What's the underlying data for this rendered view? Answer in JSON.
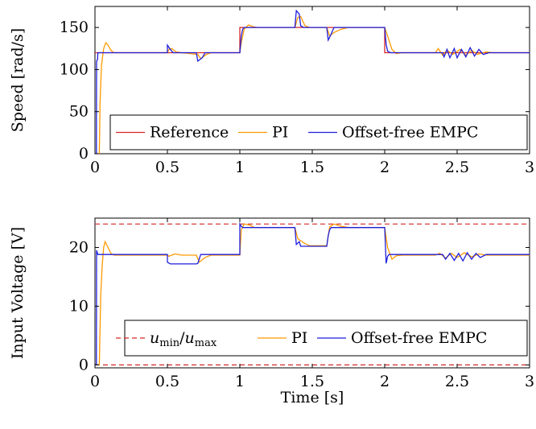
{
  "chart_data": [
    {
      "type": "line",
      "ylabel": "Speed [rad/s]",
      "xlabel": "",
      "xlim": [
        0,
        3
      ],
      "ylim": [
        0,
        175
      ],
      "xticks": [
        "0",
        "0.5",
        "1",
        "1.5",
        "2",
        "2.5",
        "3"
      ],
      "yticks": [
        "0",
        "50",
        "100",
        "150"
      ],
      "grid": false,
      "legend_placement": "bottom",
      "series": [
        {
          "name": "Reference",
          "color": "#d62728",
          "points": [
            [
              0,
              120
            ],
            [
              0.5,
              120
            ],
            [
              0.5,
              120
            ],
            [
              1.0,
              120
            ],
            [
              1.0,
              150
            ],
            [
              2.0,
              150
            ],
            [
              2.0,
              120
            ],
            [
              3.0,
              120
            ]
          ]
        },
        {
          "name": "PI",
          "color": "#ff9900",
          "points": [
            [
              0,
              0
            ],
            [
              0.03,
              0
            ],
            [
              0.035,
              60
            ],
            [
              0.045,
              105
            ],
            [
              0.06,
              125
            ],
            [
              0.075,
              132
            ],
            [
              0.09,
              129
            ],
            [
              0.11,
              123
            ],
            [
              0.13,
              120
            ],
            [
              0.5,
              120
            ],
            [
              0.51,
              124
            ],
            [
              0.53,
              125
            ],
            [
              0.56,
              121
            ],
            [
              0.6,
              120
            ],
            [
              0.71,
              118
            ],
            [
              0.73,
              113
            ],
            [
              0.77,
              118
            ],
            [
              0.8,
              120
            ],
            [
              1.0,
              120
            ],
            [
              1.01,
              132
            ],
            [
              1.03,
              148
            ],
            [
              1.06,
              153
            ],
            [
              1.09,
              151
            ],
            [
              1.12,
              150
            ],
            [
              1.38,
              150
            ],
            [
              1.4,
              162
            ],
            [
              1.42,
              163
            ],
            [
              1.45,
              152
            ],
            [
              1.48,
              150
            ],
            [
              1.6,
              150
            ],
            [
              1.62,
              140
            ],
            [
              1.65,
              144
            ],
            [
              1.7,
              148
            ],
            [
              1.75,
              150
            ],
            [
              2.0,
              150
            ],
            [
              2.02,
              140
            ],
            [
              2.05,
              124
            ],
            [
              2.08,
              119
            ],
            [
              2.12,
              120
            ],
            [
              2.35,
              120
            ],
            [
              2.37,
              125
            ],
            [
              2.4,
              117
            ],
            [
              2.43,
              123
            ],
            [
              2.47,
              118
            ],
            [
              2.52,
              124
            ],
            [
              2.56,
              117
            ],
            [
              2.6,
              123
            ],
            [
              2.64,
              118
            ],
            [
              2.7,
              121
            ],
            [
              2.75,
              120
            ],
            [
              3.0,
              120
            ]
          ]
        },
        {
          "name": "Offset-free EMPC",
          "color": "#1f1fdd",
          "points": [
            [
              0,
              0
            ],
            [
              0.01,
              0
            ],
            [
              0.011,
              110
            ],
            [
              0.018,
              112
            ],
            [
              0.02,
              120
            ],
            [
              0.5,
              120
            ],
            [
              0.5,
              129
            ],
            [
              0.52,
              124
            ],
            [
              0.54,
              120
            ],
            [
              0.7,
              120
            ],
            [
              0.71,
              110
            ],
            [
              0.74,
              114
            ],
            [
              0.76,
              120
            ],
            [
              1.0,
              120
            ],
            [
              1.01,
              140
            ],
            [
              1.02,
              148
            ],
            [
              1.03,
              150
            ],
            [
              1.38,
              150
            ],
            [
              1.39,
              170
            ],
            [
              1.41,
              166
            ],
            [
              1.42,
              152
            ],
            [
              1.44,
              150
            ],
            [
              1.6,
              150
            ],
            [
              1.61,
              135
            ],
            [
              1.63,
              142
            ],
            [
              1.65,
              150
            ],
            [
              2.0,
              150
            ],
            [
              2.01,
              130
            ],
            [
              2.02,
              122
            ],
            [
              2.04,
              120
            ],
            [
              2.4,
              120
            ],
            [
              2.41,
              115
            ],
            [
              2.43,
              124
            ],
            [
              2.45,
              114
            ],
            [
              2.48,
              125
            ],
            [
              2.5,
              114
            ],
            [
              2.53,
              124
            ],
            [
              2.56,
              115
            ],
            [
              2.59,
              126
            ],
            [
              2.62,
              116
            ],
            [
              2.65,
              124
            ],
            [
              2.68,
              118
            ],
            [
              2.72,
              120
            ],
            [
              3.0,
              120
            ]
          ]
        }
      ]
    },
    {
      "type": "line",
      "ylabel": "Input Voltage [V]",
      "xlabel": "Time [s]",
      "xlim": [
        0,
        3
      ],
      "ylim": [
        -0.5,
        25
      ],
      "xticks": [
        "0",
        "0.5",
        "1",
        "1.5",
        "2",
        "2.5",
        "3"
      ],
      "yticks": [
        "0",
        "10",
        "20"
      ],
      "grid": false,
      "legend_placement": "bottom",
      "limits": {
        "umin": 0,
        "umax": 24
      },
      "series": [
        {
          "name": "u_min/u_max",
          "color": "#d62728",
          "dashed": true
        },
        {
          "name": "PI",
          "color": "#ff9900",
          "points": [
            [
              0,
              0
            ],
            [
              0.03,
              0
            ],
            [
              0.035,
              6
            ],
            [
              0.04,
              12
            ],
            [
              0.05,
              17
            ],
            [
              0.06,
              20
            ],
            [
              0.07,
              21
            ],
            [
              0.09,
              20
            ],
            [
              0.11,
              19
            ],
            [
              0.13,
              18.7
            ],
            [
              0.5,
              18.7
            ],
            [
              0.51,
              18.5
            ],
            [
              0.55,
              18.9
            ],
            [
              0.6,
              18.7
            ],
            [
              0.7,
              18.7
            ],
            [
              0.72,
              17.5
            ],
            [
              0.76,
              18.3
            ],
            [
              0.8,
              18.7
            ],
            [
              1.0,
              18.7
            ],
            [
              1.01,
              23
            ],
            [
              1.03,
              24
            ],
            [
              1.07,
              23.8
            ],
            [
              1.1,
              23.4
            ],
            [
              1.38,
              23.4
            ],
            [
              1.4,
              21.5
            ],
            [
              1.44,
              20.8
            ],
            [
              1.48,
              20.3
            ],
            [
              1.6,
              20.3
            ],
            [
              1.62,
              23.5
            ],
            [
              1.65,
              24
            ],
            [
              1.7,
              23.6
            ],
            [
              1.75,
              23.4
            ],
            [
              2.0,
              23.4
            ],
            [
              2.02,
              20
            ],
            [
              2.05,
              18
            ],
            [
              2.08,
              18.6
            ],
            [
              2.12,
              18.7
            ],
            [
              2.35,
              18.7
            ],
            [
              2.38,
              19
            ],
            [
              2.42,
              18.2
            ],
            [
              2.46,
              19
            ],
            [
              2.5,
              18.3
            ],
            [
              2.55,
              19.1
            ],
            [
              2.6,
              18.4
            ],
            [
              2.65,
              18.9
            ],
            [
              2.7,
              18.7
            ],
            [
              3.0,
              18.7
            ]
          ]
        },
        {
          "name": "Offset-free EMPC",
          "color": "#1f1fdd",
          "points": [
            [
              0,
              0
            ],
            [
              0.01,
              0
            ],
            [
              0.011,
              19.5
            ],
            [
              0.02,
              18.8
            ],
            [
              0.5,
              18.8
            ],
            [
              0.5,
              17.5
            ],
            [
              0.52,
              17.2
            ],
            [
              0.7,
              17.2
            ],
            [
              0.71,
              17.3
            ],
            [
              0.73,
              18.8
            ],
            [
              1.0,
              18.8
            ],
            [
              1.0,
              24
            ],
            [
              1.01,
              23.6
            ],
            [
              1.02,
              23.4
            ],
            [
              1.38,
              23.4
            ],
            [
              1.39,
              20.5
            ],
            [
              1.41,
              21
            ],
            [
              1.42,
              20.2
            ],
            [
              1.6,
              20.2
            ],
            [
              1.61,
              22
            ],
            [
              1.62,
              23
            ],
            [
              1.63,
              23.4
            ],
            [
              2.0,
              23.4
            ],
            [
              2.01,
              17.3
            ],
            [
              2.02,
              18.5
            ],
            [
              2.03,
              18.8
            ],
            [
              2.4,
              18.8
            ],
            [
              2.42,
              18
            ],
            [
              2.45,
              19
            ],
            [
              2.48,
              17.8
            ],
            [
              2.51,
              19
            ],
            [
              2.54,
              17.7
            ],
            [
              2.57,
              19.1
            ],
            [
              2.6,
              18
            ],
            [
              2.63,
              19
            ],
            [
              2.66,
              18.3
            ],
            [
              2.7,
              18.8
            ],
            [
              3.0,
              18.8
            ]
          ]
        }
      ]
    }
  ]
}
